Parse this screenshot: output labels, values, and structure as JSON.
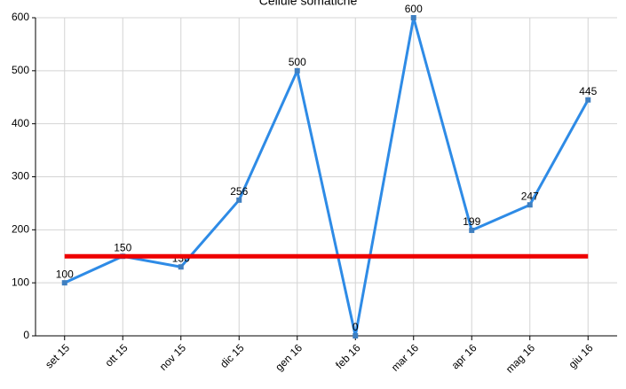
{
  "chart_data": {
    "type": "line",
    "title": "Cellule somatiche",
    "categories": [
      "set 15",
      "ott 15",
      "nov 15",
      "dic 15",
      "gen 16",
      "feb 16",
      "mar 16",
      "apr 16",
      "mag 16",
      "giu 16"
    ],
    "series": [
      {
        "color": "#2e8be6",
        "values": [
          100,
          150,
          130,
          256,
          500,
          0,
          600,
          199,
          247,
          445
        ],
        "labels": true
      },
      {
        "color": "#ee0000",
        "values": [
          150,
          150,
          150,
          150,
          150,
          150,
          150,
          150,
          150,
          150
        ]
      }
    ],
    "ylim": [
      0,
      600
    ],
    "yticks": [
      0,
      100,
      200,
      300,
      400,
      500,
      600
    ],
    "grid": true
  }
}
